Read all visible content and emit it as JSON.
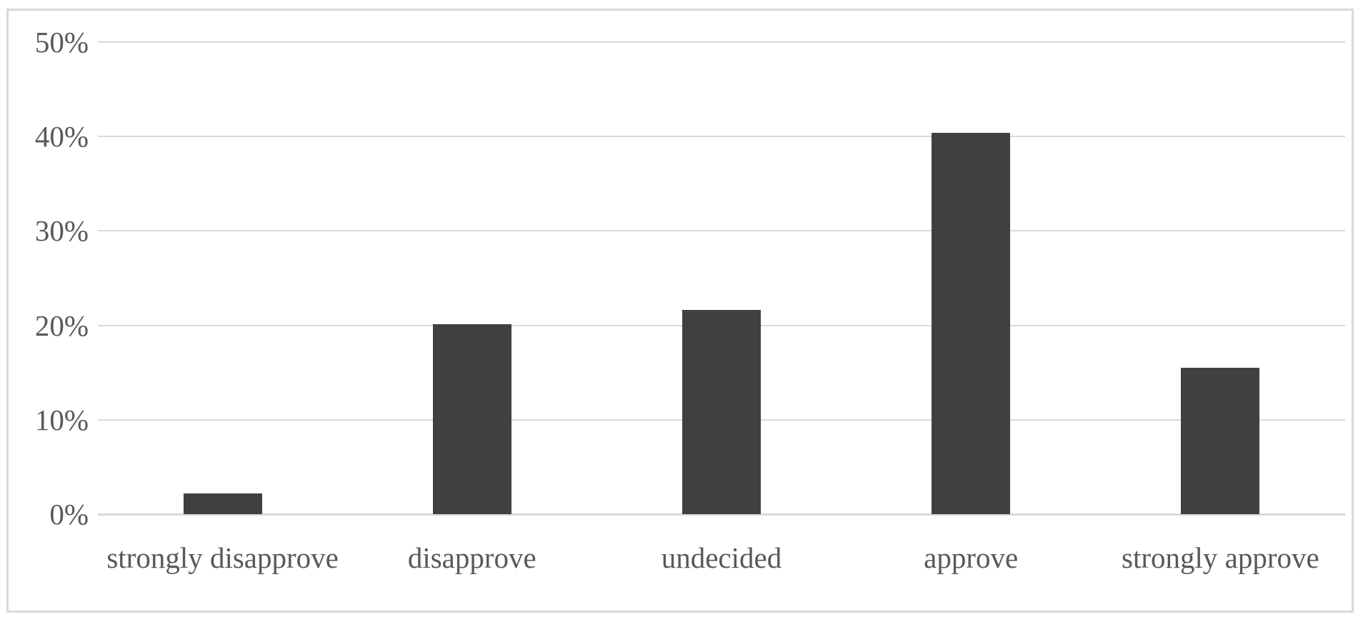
{
  "chart_data": {
    "type": "bar",
    "title": "",
    "categories": [
      "strongly disapprove",
      "disapprove",
      "undecided",
      "approve",
      "strongly approve"
    ],
    "values": [
      2.2,
      20.1,
      21.6,
      40.4,
      15.5
    ],
    "unit": "%",
    "xlabel": "",
    "ylabel": "",
    "ylim": [
      0,
      50
    ],
    "ytick_step": 10,
    "ytick_labels": [
      "0%",
      "10%",
      "20%",
      "30%",
      "40%",
      "50%"
    ],
    "grid": true,
    "legend": false,
    "series_count": 1,
    "colors": {
      "bar": "#404040",
      "gridline": "#d9d9d9",
      "tick_text": "#595959",
      "frame_border": "#d9d9d9",
      "background": "#ffffff"
    }
  }
}
